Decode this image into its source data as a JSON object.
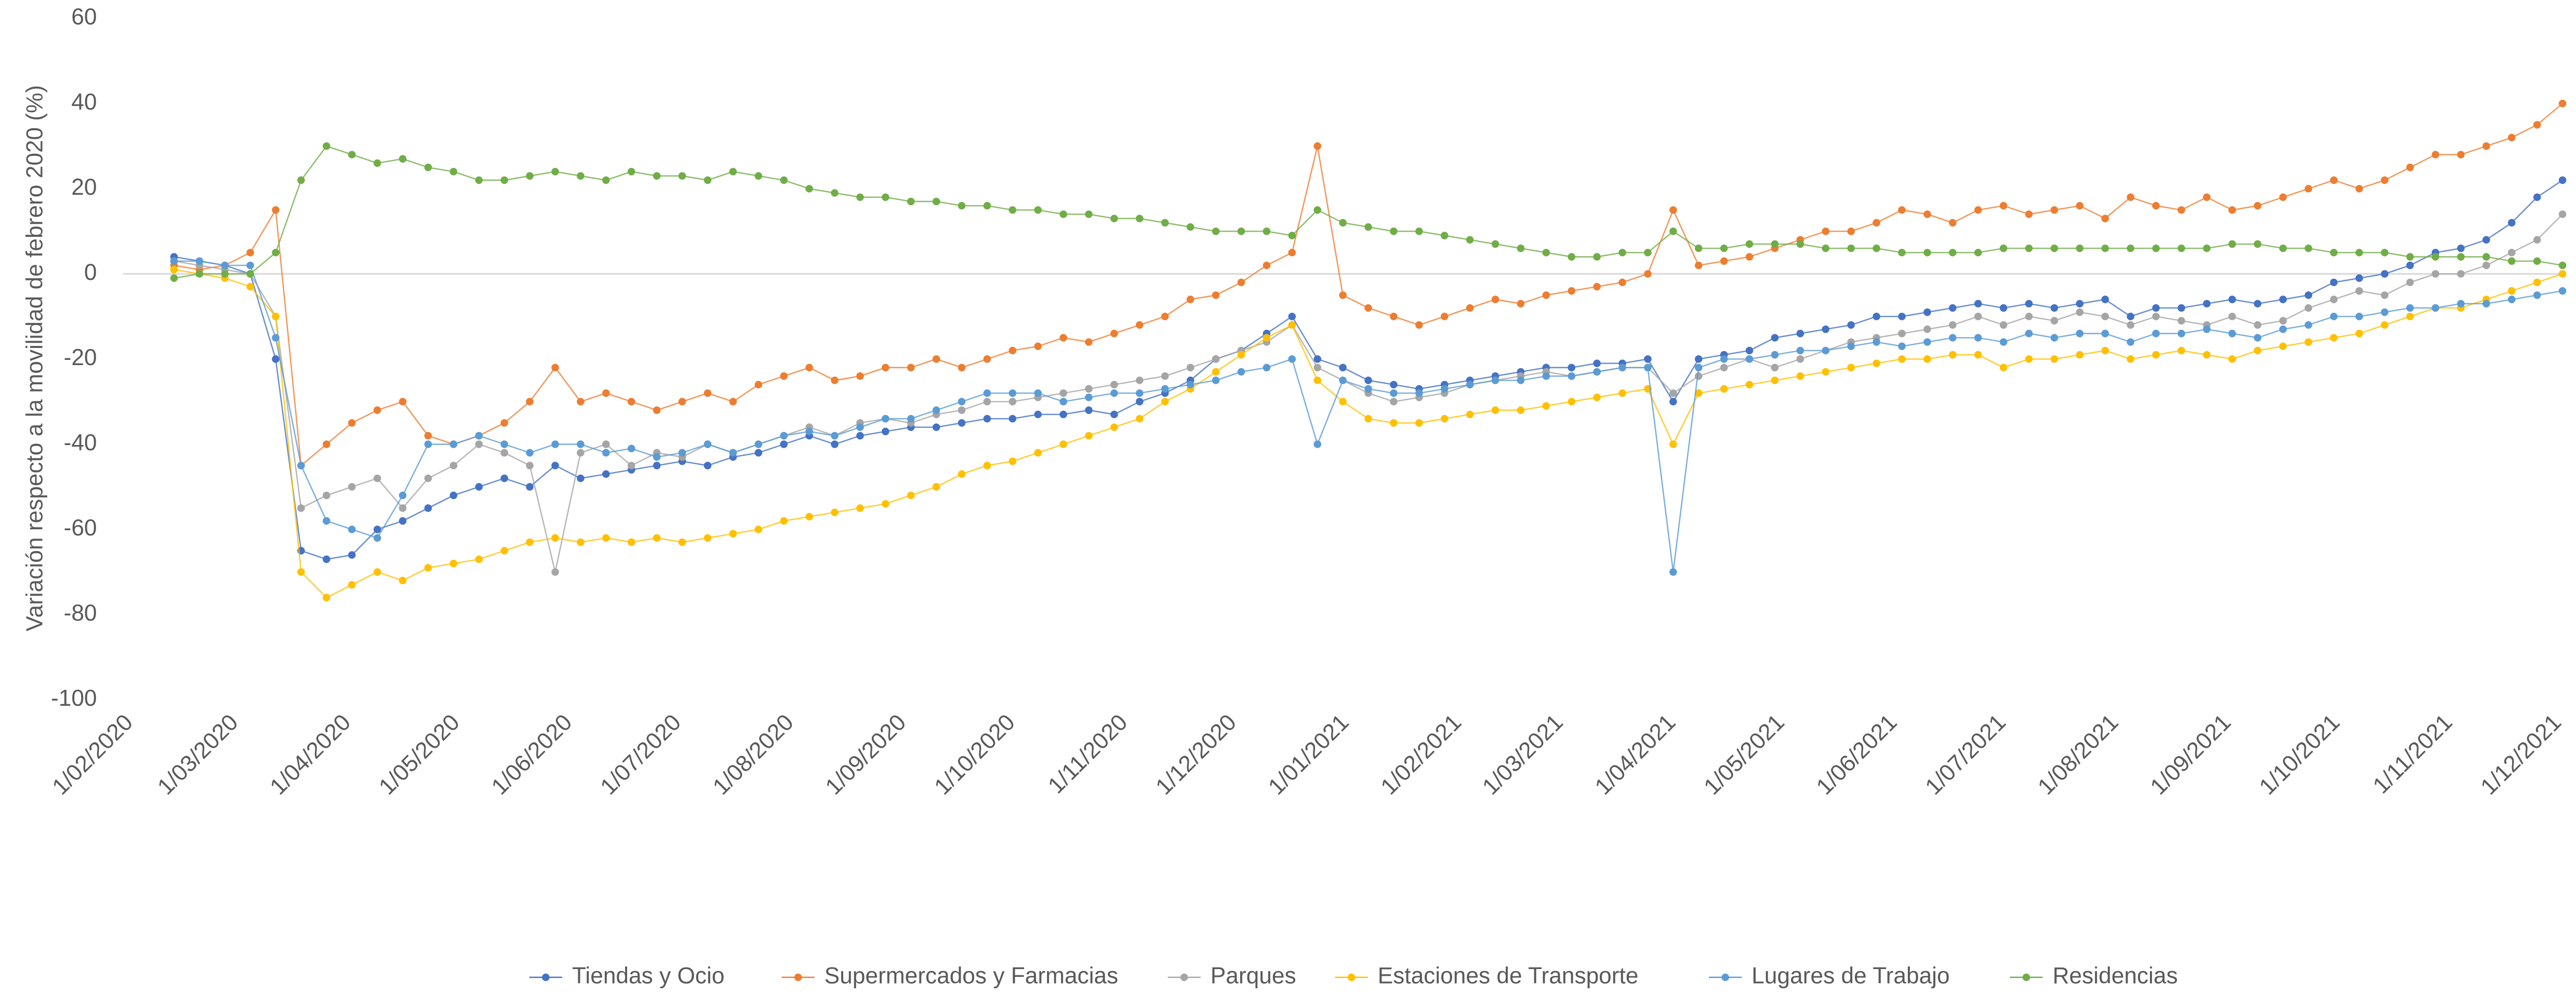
{
  "chart_data": {
    "type": "line",
    "ylabel": "Variación respecto a la movilidad de febrero 2020 (%)",
    "ylim": [
      -100,
      60
    ],
    "yticks": [
      -100,
      -80,
      -60,
      -40,
      -20,
      0,
      20,
      40,
      60
    ],
    "xlim": [
      "1/02/2020",
      "5/12/2021"
    ],
    "xticks": [
      "1/02/2020",
      "1/03/2020",
      "1/04/2020",
      "1/05/2020",
      "1/06/2020",
      "1/07/2020",
      "1/08/2020",
      "1/09/2020",
      "1/10/2020",
      "1/11/2020",
      "1/12/2020",
      "1/01/2021",
      "1/02/2021",
      "1/03/2021",
      "1/04/2021",
      "1/05/2021",
      "1/06/2021",
      "1/07/2021",
      "1/08/2021",
      "1/09/2021",
      "1/10/2021",
      "1/11/2021",
      "1/12/2021"
    ],
    "grid": false,
    "legend": "bottom",
    "x": [
      "15/02/2020",
      "22/02/2020",
      "29/02/2020",
      "7/03/2020",
      "14/03/2020",
      "21/03/2020",
      "28/03/2020",
      "4/04/2020",
      "11/04/2020",
      "18/04/2020",
      "25/04/2020",
      "2/05/2020",
      "9/05/2020",
      "16/05/2020",
      "23/05/2020",
      "30/05/2020",
      "6/06/2020",
      "13/06/2020",
      "20/06/2020",
      "27/06/2020",
      "4/07/2020",
      "11/07/2020",
      "18/07/2020",
      "25/07/2020",
      "1/08/2020",
      "8/08/2020",
      "15/08/2020",
      "22/08/2020",
      "29/08/2020",
      "5/09/2020",
      "12/09/2020",
      "19/09/2020",
      "26/09/2020",
      "3/10/2020",
      "10/10/2020",
      "17/10/2020",
      "24/10/2020",
      "31/10/2020",
      "7/11/2020",
      "14/11/2020",
      "21/11/2020",
      "28/11/2020",
      "5/12/2020",
      "12/12/2020",
      "19/12/2020",
      "26/12/2020",
      "2/01/2021",
      "9/01/2021",
      "16/01/2021",
      "23/01/2021",
      "30/01/2021",
      "6/02/2021",
      "13/02/2021",
      "20/02/2021",
      "27/02/2021",
      "6/03/2021",
      "13/03/2021",
      "20/03/2021",
      "27/03/2021",
      "3/04/2021",
      "10/04/2021",
      "17/04/2021",
      "24/04/2021",
      "1/05/2021",
      "8/05/2021",
      "15/05/2021",
      "22/05/2021",
      "29/05/2021",
      "5/06/2021",
      "12/06/2021",
      "19/06/2021",
      "26/06/2021",
      "3/07/2021",
      "10/07/2021",
      "17/07/2021",
      "24/07/2021",
      "31/07/2021",
      "7/08/2021",
      "14/08/2021",
      "21/08/2021",
      "28/08/2021",
      "4/09/2021",
      "11/09/2021",
      "18/09/2021",
      "25/09/2021",
      "2/10/2021",
      "9/10/2021",
      "16/10/2021",
      "23/10/2021",
      "30/10/2021",
      "6/11/2021",
      "13/11/2021",
      "20/11/2021",
      "27/11/2021",
      "4/12/2021"
    ],
    "series": [
      {
        "name": "Tiendas y Ocio",
        "color": "#4472c4",
        "values": [
          4,
          3,
          2,
          0,
          -20,
          -65,
          -67,
          -66,
          -60,
          -58,
          -55,
          -52,
          -50,
          -48,
          -50,
          -45,
          -48,
          -47,
          -46,
          -45,
          -44,
          -45,
          -43,
          -42,
          -40,
          -38,
          -40,
          -38,
          -37,
          -36,
          -36,
          -35,
          -34,
          -34,
          -33,
          -33,
          -32,
          -33,
          -30,
          -28,
          -25,
          -20,
          -18,
          -14,
          -10,
          -20,
          -22,
          -25,
          -26,
          -27,
          -26,
          -25,
          -24,
          -23,
          -22,
          -22,
          -21,
          -21,
          -20,
          -30,
          -20,
          -19,
          -18,
          -15,
          -14,
          -13,
          -12,
          -10,
          -10,
          -9,
          -8,
          -7,
          -8,
          -7,
          -8,
          -7,
          -6,
          -10,
          -8,
          -8,
          -7,
          -6,
          -7,
          -6,
          -5,
          -2,
          -1,
          0,
          2,
          5,
          6,
          8,
          12,
          18,
          22
        ]
      },
      {
        "name": "Supermercados y Farmacias",
        "color": "#ed7d31",
        "values": [
          2,
          1,
          2,
          5,
          15,
          -45,
          -40,
          -35,
          -32,
          -30,
          -38,
          -40,
          -38,
          -35,
          -30,
          -22,
          -30,
          -28,
          -30,
          -32,
          -30,
          -28,
          -30,
          -26,
          -24,
          -22,
          -25,
          -24,
          -22,
          -22,
          -20,
          -22,
          -20,
          -18,
          -17,
          -15,
          -16,
          -14,
          -12,
          -10,
          -6,
          -5,
          -2,
          2,
          5,
          30,
          -5,
          -8,
          -10,
          -12,
          -10,
          -8,
          -6,
          -7,
          -5,
          -4,
          -3,
          -2,
          0,
          15,
          2,
          3,
          4,
          6,
          8,
          10,
          10,
          12,
          15,
          14,
          12,
          15,
          16,
          14,
          15,
          16,
          13,
          18,
          16,
          15,
          18,
          15,
          16,
          18,
          20,
          22,
          20,
          22,
          25,
          28,
          28,
          30,
          32,
          35,
          40
        ]
      },
      {
        "name": "Parques",
        "color": "#a5a5a5",
        "values": [
          3,
          2,
          1,
          0,
          -10,
          -55,
          -52,
          -50,
          -48,
          -55,
          -48,
          -45,
          -40,
          -42,
          -45,
          -70,
          -42,
          -40,
          -45,
          -42,
          -43,
          -40,
          -42,
          -40,
          -38,
          -36,
          -38,
          -35,
          -34,
          -35,
          -33,
          -32,
          -30,
          -30,
          -29,
          -28,
          -27,
          -26,
          -25,
          -24,
          -22,
          -20,
          -18,
          -16,
          -12,
          -22,
          -25,
          -28,
          -30,
          -29,
          -28,
          -26,
          -25,
          -24,
          -23,
          -24,
          -23,
          -22,
          -22,
          -28,
          -24,
          -22,
          -20,
          -22,
          -20,
          -18,
          -16,
          -15,
          -14,
          -13,
          -12,
          -10,
          -12,
          -10,
          -11,
          -9,
          -10,
          -12,
          -10,
          -11,
          -12,
          -10,
          -12,
          -11,
          -8,
          -6,
          -4,
          -5,
          -2,
          0,
          0,
          2,
          5,
          8,
          14
        ]
      },
      {
        "name": "Estaciones de Transporte",
        "color": "#ffc000",
        "values": [
          1,
          0,
          -1,
          -3,
          -10,
          -70,
          -76,
          -73,
          -70,
          -72,
          -69,
          -68,
          -67,
          -65,
          -63,
          -62,
          -63,
          -62,
          -63,
          -62,
          -63,
          -62,
          -61,
          -60,
          -58,
          -57,
          -56,
          -55,
          -54,
          -52,
          -50,
          -47,
          -45,
          -44,
          -42,
          -40,
          -38,
          -36,
          -34,
          -30,
          -27,
          -23,
          -19,
          -15,
          -12,
          -25,
          -30,
          -34,
          -35,
          -35,
          -34,
          -33,
          -32,
          -32,
          -31,
          -30,
          -29,
          -28,
          -27,
          -40,
          -28,
          -27,
          -26,
          -25,
          -24,
          -23,
          -22,
          -21,
          -20,
          -20,
          -19,
          -19,
          -22,
          -20,
          -20,
          -19,
          -18,
          -20,
          -19,
          -18,
          -19,
          -20,
          -18,
          -17,
          -16,
          -15,
          -14,
          -12,
          -10,
          -8,
          -8,
          -6,
          -4,
          -2,
          0
        ]
      },
      {
        "name": "Lugares de Trabajo",
        "color": "#5b9bd5",
        "values": [
          3,
          3,
          2,
          2,
          -15,
          -45,
          -58,
          -60,
          -62,
          -52,
          -40,
          -40,
          -38,
          -40,
          -42,
          -40,
          -40,
          -42,
          -41,
          -43,
          -42,
          -40,
          -42,
          -40,
          -38,
          -37,
          -38,
          -36,
          -34,
          -34,
          -32,
          -30,
          -28,
          -28,
          -28,
          -30,
          -29,
          -28,
          -28,
          -27,
          -26,
          -25,
          -23,
          -22,
          -20,
          -40,
          -25,
          -27,
          -28,
          -28,
          -27,
          -26,
          -25,
          -25,
          -24,
          -24,
          -23,
          -22,
          -22,
          -70,
          -22,
          -20,
          -20,
          -19,
          -18,
          -18,
          -17,
          -16,
          -17,
          -16,
          -15,
          -15,
          -16,
          -14,
          -15,
          -14,
          -14,
          -16,
          -14,
          -14,
          -13,
          -14,
          -15,
          -13,
          -12,
          -10,
          -10,
          -9,
          -8,
          -8,
          -7,
          -7,
          -6,
          -5,
          -4
        ]
      },
      {
        "name": "Residencias",
        "color": "#70ad47",
        "values": [
          -1,
          0,
          0,
          0,
          5,
          22,
          30,
          28,
          26,
          27,
          25,
          24,
          22,
          22,
          23,
          24,
          23,
          22,
          24,
          23,
          23,
          22,
          24,
          23,
          22,
          20,
          19,
          18,
          18,
          17,
          17,
          16,
          16,
          15,
          15,
          14,
          14,
          13,
          13,
          12,
          11,
          10,
          10,
          10,
          9,
          15,
          12,
          11,
          10,
          10,
          9,
          8,
          7,
          6,
          5,
          4,
          4,
          5,
          5,
          10,
          6,
          6,
          7,
          7,
          7,
          6,
          6,
          6,
          5,
          5,
          5,
          5,
          6,
          6,
          6,
          6,
          6,
          6,
          6,
          6,
          6,
          7,
          7,
          6,
          6,
          5,
          5,
          5,
          4,
          4,
          4,
          4,
          3,
          3,
          2
        ]
      }
    ]
  }
}
